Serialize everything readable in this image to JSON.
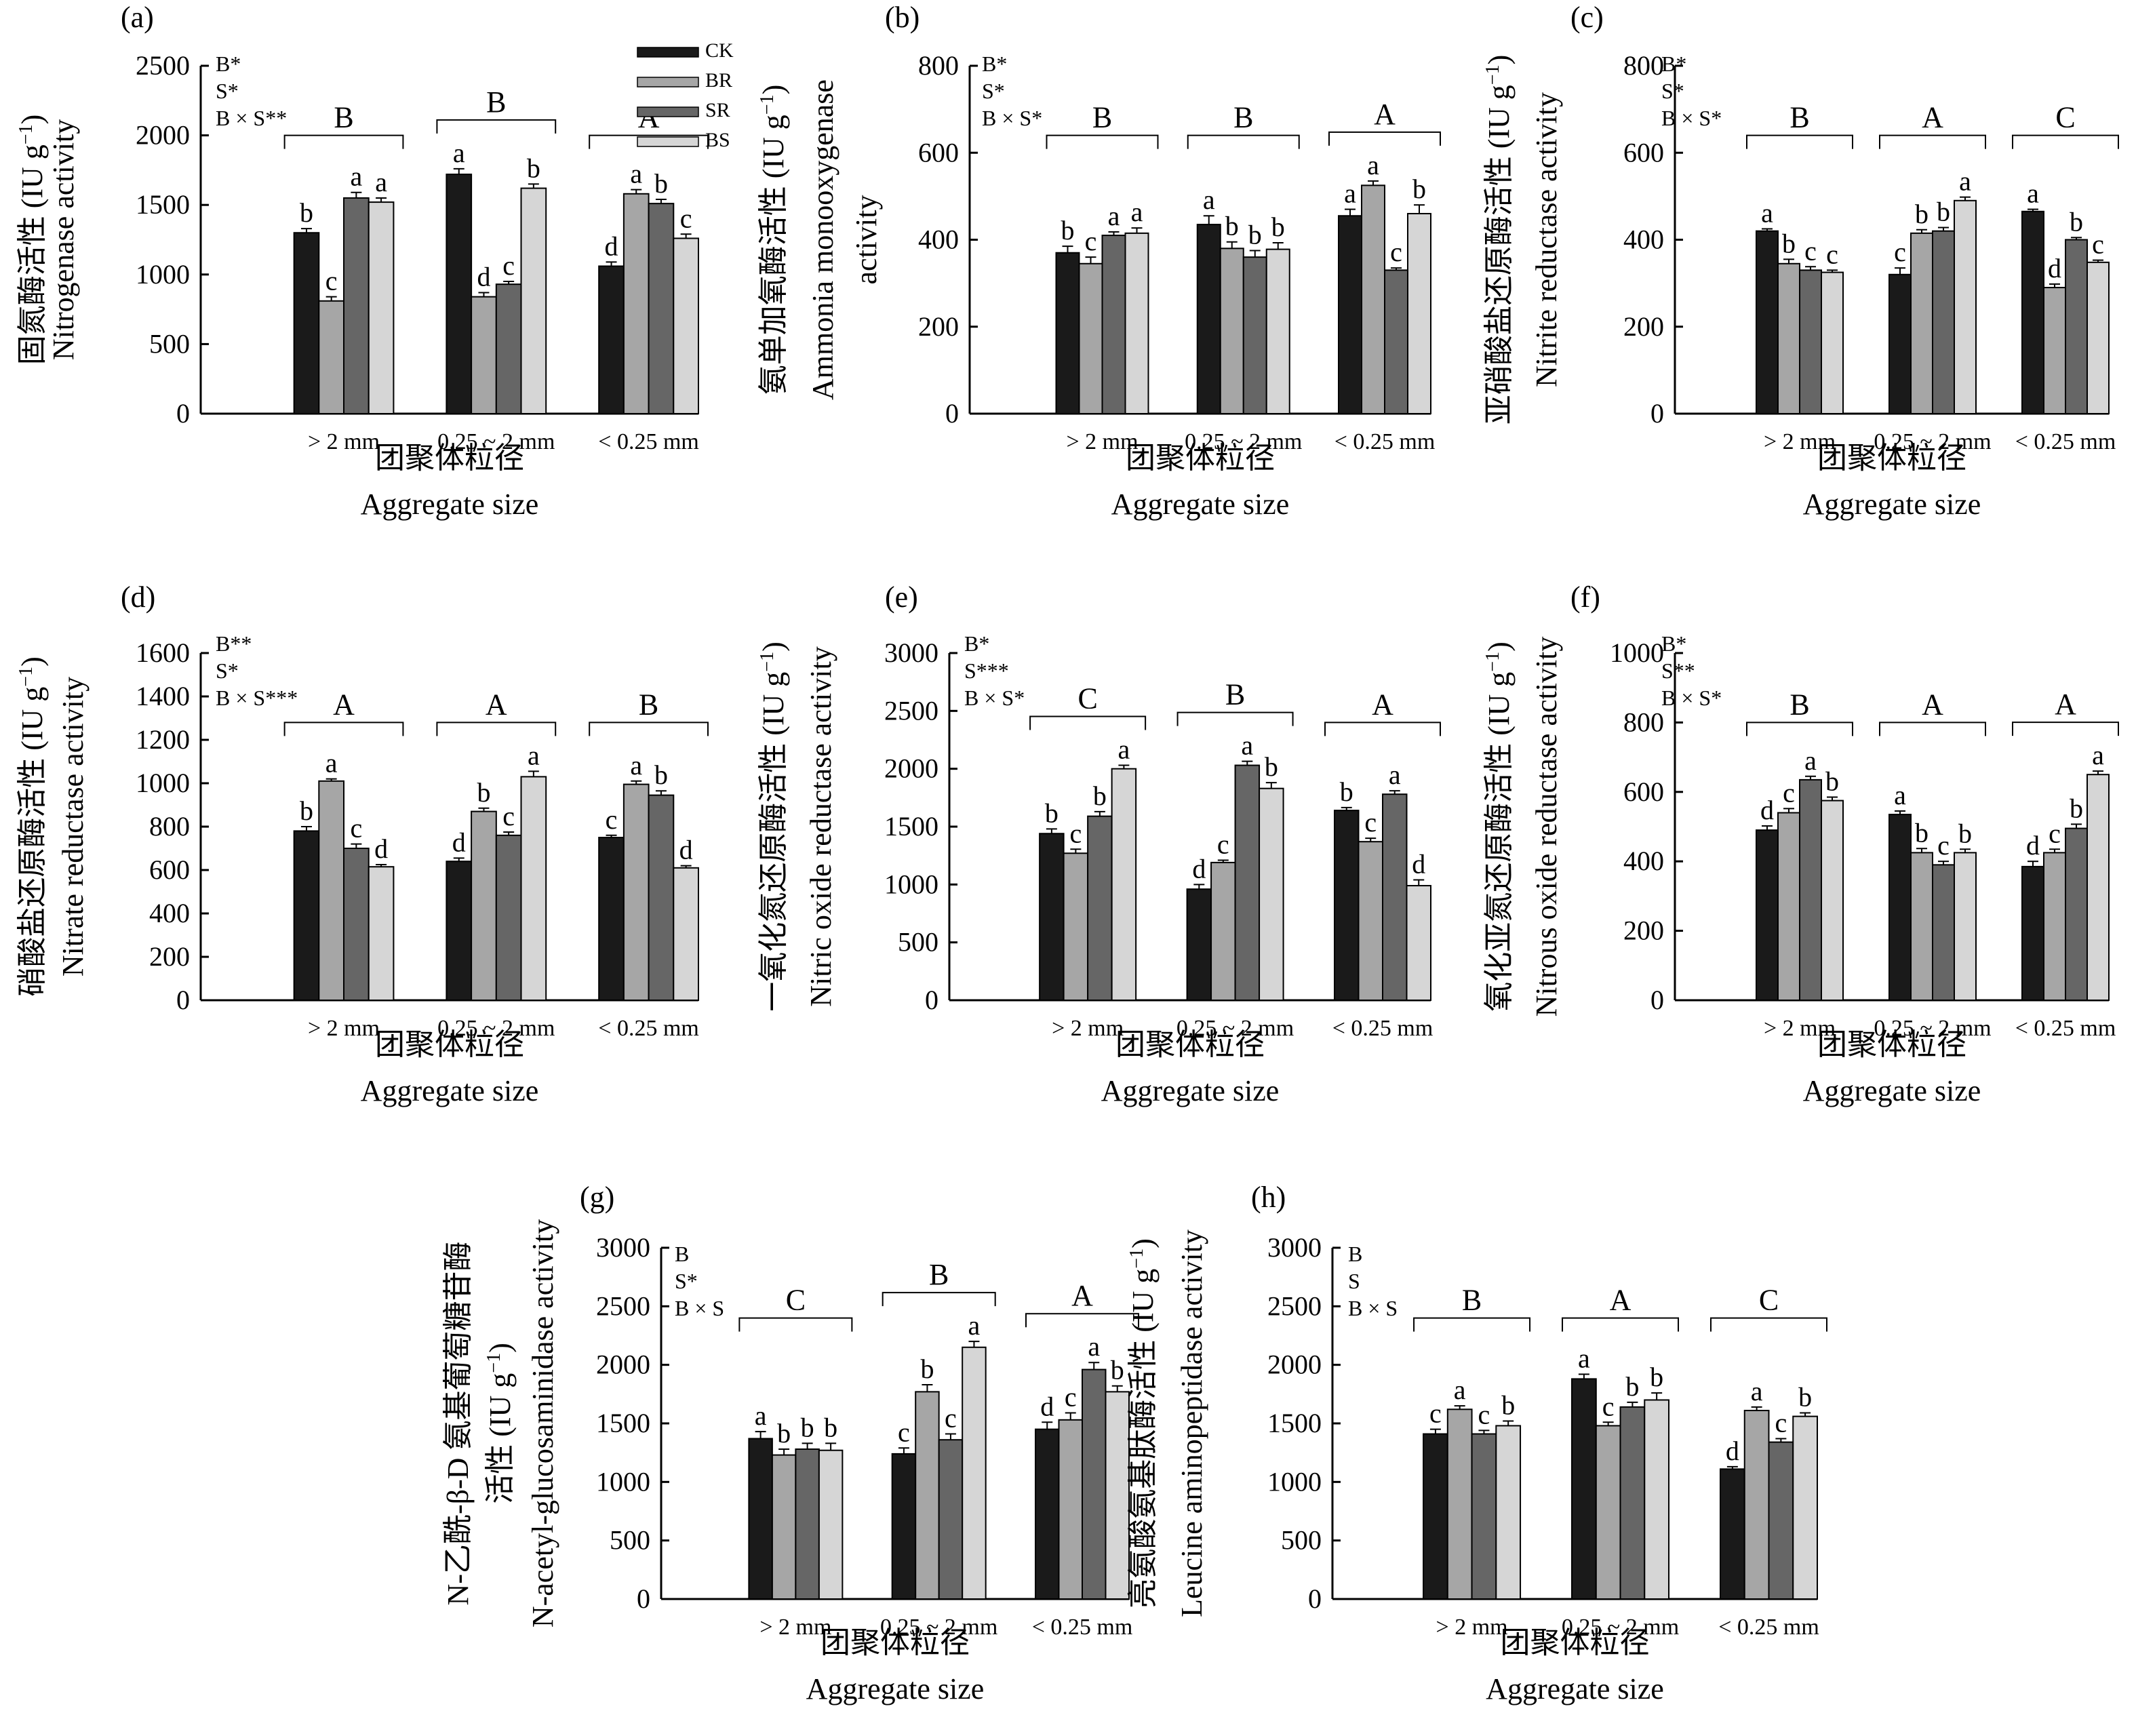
{
  "legend": {
    "series": [
      {
        "name": "CK",
        "color": "#1a1a1a"
      },
      {
        "name": "BR",
        "color": "#a6a6a6"
      },
      {
        "name": "SR",
        "color": "#666666"
      },
      {
        "name": "BS",
        "color": "#d6d6d6"
      }
    ]
  },
  "chart_data": [
    {
      "panel": "(a)",
      "type": "bar",
      "ylabel_cn": "固氮酶活性 (IU g⁻¹)",
      "ylabel_en": [
        "Nitrogenase activity"
      ],
      "xlabel_cn": "团聚体粒径",
      "xlabel_en": "Aggregate size",
      "categories": [
        "> 2 mm",
        "0.25 ~ 2 mm",
        "< 0.25 mm"
      ],
      "ylim": [
        0,
        2500
      ],
      "yticks": [
        0,
        500,
        1000,
        1500,
        2000,
        2500
      ],
      "stats": [
        "B*",
        "S*",
        "B × S**"
      ],
      "group_letters": [
        "B",
        "B",
        "A"
      ],
      "series": [
        {
          "name": "CK",
          "values": [
            1300,
            1720,
            1060
          ],
          "errors": [
            30,
            40,
            30
          ],
          "letters": [
            "b",
            "a",
            "d"
          ]
        },
        {
          "name": "BR",
          "values": [
            810,
            840,
            1580
          ],
          "errors": [
            30,
            30,
            30
          ],
          "letters": [
            "c",
            "d",
            "a"
          ]
        },
        {
          "name": "SR",
          "values": [
            1550,
            930,
            1510
          ],
          "errors": [
            40,
            20,
            30
          ],
          "letters": [
            "a",
            "c",
            "b"
          ]
        },
        {
          "name": "BS",
          "values": [
            1520,
            1620,
            1260
          ],
          "errors": [
            30,
            30,
            30
          ],
          "letters": [
            "a",
            "b",
            "c"
          ]
        }
      ]
    },
    {
      "panel": "(b)",
      "type": "bar",
      "ylabel_cn": "氨单加氧酶活性 (IU g⁻¹)",
      "ylabel_en": [
        "Ammonia monooxygenase",
        "activity"
      ],
      "xlabel_cn": "团聚体粒径",
      "xlabel_en": "Aggregate size",
      "categories": [
        "> 2 mm",
        "0.25 ~ 2 mm",
        "< 0.25 mm"
      ],
      "ylim": [
        0,
        800
      ],
      "yticks": [
        0,
        200,
        400,
        600,
        800
      ],
      "stats": [
        "B*",
        "S*",
        "B × S*"
      ],
      "group_letters": [
        "B",
        "B",
        "A"
      ],
      "series": [
        {
          "name": "CK",
          "values": [
            370,
            435,
            455
          ],
          "errors": [
            15,
            20,
            15
          ],
          "letters": [
            "b",
            "a",
            "a"
          ]
        },
        {
          "name": "BR",
          "values": [
            345,
            380,
            525
          ],
          "errors": [
            15,
            15,
            10
          ],
          "letters": [
            "c",
            "b",
            "a"
          ]
        },
        {
          "name": "SR",
          "values": [
            410,
            360,
            330
          ],
          "errors": [
            8,
            15,
            5
          ],
          "letters": [
            "a",
            "b",
            "c"
          ]
        },
        {
          "name": "BS",
          "values": [
            415,
            378,
            460
          ],
          "errors": [
            12,
            15,
            20
          ],
          "letters": [
            "a",
            "b",
            "b"
          ]
        }
      ]
    },
    {
      "panel": "(c)",
      "type": "bar",
      "ylabel_cn": "亚硝酸盐还原酶活性 (IU g⁻¹)",
      "ylabel_en": [
        "Nitrite reductase activity"
      ],
      "xlabel_cn": "团聚体粒径",
      "xlabel_en": "Aggregate size",
      "categories": [
        "> 2 mm",
        "0.25 ~ 2 mm",
        "< 0.25 mm"
      ],
      "ylim": [
        0,
        800
      ],
      "yticks": [
        0,
        200,
        400,
        600,
        800
      ],
      "stats": [
        "B*",
        "S*",
        "B × S*"
      ],
      "group_letters": [
        "B",
        "A",
        "C"
      ],
      "series": [
        {
          "name": "CK",
          "values": [
            420,
            320,
            465
          ],
          "errors": [
            5,
            15,
            5
          ],
          "letters": [
            "a",
            "c",
            "a"
          ]
        },
        {
          "name": "BR",
          "values": [
            345,
            415,
            290
          ],
          "errors": [
            10,
            8,
            8
          ],
          "letters": [
            "b",
            "b",
            "d"
          ]
        },
        {
          "name": "SR",
          "values": [
            330,
            420,
            400
          ],
          "errors": [
            8,
            8,
            5
          ],
          "letters": [
            "c",
            "b",
            "b"
          ]
        },
        {
          "name": "BS",
          "values": [
            325,
            490,
            348
          ],
          "errors": [
            5,
            8,
            5
          ],
          "letters": [
            "c",
            "a",
            "c"
          ]
        }
      ]
    },
    {
      "panel": "(d)",
      "type": "bar",
      "ylabel_cn": "硝酸盐还原酶活性 (IU g⁻¹)",
      "ylabel_en": [
        "Nitrate reductase activity"
      ],
      "xlabel_cn": "团聚体粒径",
      "xlabel_en": "Aggregate size",
      "categories": [
        "> 2 mm",
        "0.25 ~ 2 mm",
        "< 0.25 mm"
      ],
      "ylim": [
        0,
        1600
      ],
      "yticks": [
        0,
        200,
        400,
        600,
        800,
        1000,
        1200,
        1400,
        1600
      ],
      "stats": [
        "B**",
        "S*",
        "B × S***"
      ],
      "group_letters": [
        "A",
        "A",
        "B"
      ],
      "series": [
        {
          "name": "CK",
          "values": [
            780,
            640,
            750
          ],
          "errors": [
            20,
            15,
            10
          ],
          "letters": [
            "b",
            "d",
            "c"
          ]
        },
        {
          "name": "BR",
          "values": [
            1010,
            870,
            995
          ],
          "errors": [
            10,
            15,
            15
          ],
          "letters": [
            "a",
            "b",
            "a"
          ]
        },
        {
          "name": "SR",
          "values": [
            700,
            760,
            945
          ],
          "errors": [
            20,
            15,
            20
          ],
          "letters": [
            "c",
            "c",
            "b"
          ]
        },
        {
          "name": "BS",
          "values": [
            615,
            1030,
            610
          ],
          "errors": [
            10,
            25,
            10
          ],
          "letters": [
            "d",
            "a",
            "d"
          ]
        }
      ]
    },
    {
      "panel": "(e)",
      "type": "bar",
      "ylabel_cn": "一氧化氮还原酶活性 (IU g⁻¹)",
      "ylabel_en": [
        "Nitric oxide reductase activity"
      ],
      "xlabel_cn": "团聚体粒径",
      "xlabel_en": "Aggregate size",
      "categories": [
        "> 2 mm",
        "0.25 ~ 2 mm",
        "< 0.25 mm"
      ],
      "ylim": [
        0,
        3000
      ],
      "yticks": [
        0,
        500,
        1000,
        1500,
        2000,
        2500,
        3000
      ],
      "stats": [
        "B*",
        "S***",
        "B × S*"
      ],
      "group_letters": [
        "C",
        "B",
        "A"
      ],
      "series": [
        {
          "name": "CK",
          "values": [
            1440,
            960,
            1640
          ],
          "errors": [
            40,
            40,
            25
          ],
          "letters": [
            "b",
            "d",
            "b"
          ]
        },
        {
          "name": "BR",
          "values": [
            1270,
            1190,
            1370
          ],
          "errors": [
            35,
            20,
            30
          ],
          "letters": [
            "c",
            "c",
            "c"
          ]
        },
        {
          "name": "SR",
          "values": [
            1590,
            2030,
            1780
          ],
          "errors": [
            40,
            35,
            30
          ],
          "letters": [
            "b",
            "a",
            "a"
          ]
        },
        {
          "name": "BS",
          "values": [
            2000,
            1830,
            990
          ],
          "errors": [
            30,
            50,
            50
          ],
          "letters": [
            "a",
            "b",
            "d"
          ]
        }
      ]
    },
    {
      "panel": "(f)",
      "type": "bar",
      "ylabel_cn": "氧化亚氮还原酶活性 (IU g⁻¹)",
      "ylabel_en": [
        "Nitrous oxide reductase activity"
      ],
      "xlabel_cn": "团聚体粒径",
      "xlabel_en": "Aggregate size",
      "categories": [
        "> 2 mm",
        "0.25 ~ 2 mm",
        "< 0.25 mm"
      ],
      "ylim": [
        0,
        1000
      ],
      "yticks": [
        0,
        200,
        400,
        600,
        800,
        1000
      ],
      "stats": [
        "B*",
        "S**",
        "B × S*"
      ],
      "group_letters": [
        "B",
        "A",
        "A"
      ],
      "series": [
        {
          "name": "CK",
          "values": [
            490,
            535,
            385
          ],
          "errors": [
            12,
            10,
            15
          ],
          "letters": [
            "d",
            "a",
            "d"
          ]
        },
        {
          "name": "BR",
          "values": [
            540,
            425,
            425
          ],
          "errors": [
            12,
            12,
            10
          ],
          "letters": [
            "c",
            "b",
            "c"
          ]
        },
        {
          "name": "SR",
          "values": [
            635,
            390,
            495
          ],
          "errors": [
            10,
            10,
            12
          ],
          "letters": [
            "a",
            "c",
            "b"
          ]
        },
        {
          "name": "BS",
          "values": [
            575,
            425,
            650
          ],
          "errors": [
            10,
            10,
            10
          ],
          "letters": [
            "b",
            "b",
            "a"
          ]
        }
      ]
    },
    {
      "panel": "(g)",
      "type": "bar",
      "ylabel_cn": "N-乙酰-β-D 氨基葡萄糖苷酶 活性 (IU g⁻¹)",
      "ylabel_en": [
        "N-acetyl-glucosaminidase activity"
      ],
      "ylabel_cn_lines": [
        "N-乙酰-β-D 氨基葡萄糖苷酶",
        "活性 (IU g⁻¹)"
      ],
      "xlabel_cn": "团聚体粒径",
      "xlabel_en": "Aggregate size",
      "categories": [
        "> 2 mm",
        "0.25 ~ 2 mm",
        "< 0.25 mm"
      ],
      "ylim": [
        0,
        3000
      ],
      "yticks": [
        0,
        500,
        1000,
        1500,
        2000,
        2500,
        3000
      ],
      "stats": [
        "B",
        "S*",
        "B × S"
      ],
      "group_letters": [
        "C",
        "B",
        "A"
      ],
      "series": [
        {
          "name": "CK",
          "values": [
            1370,
            1240,
            1450
          ],
          "errors": [
            60,
            50,
            60
          ],
          "letters": [
            "a",
            "c",
            "d"
          ]
        },
        {
          "name": "BR",
          "values": [
            1230,
            1770,
            1530
          ],
          "errors": [
            50,
            60,
            60
          ],
          "letters": [
            "b",
            "b",
            "c"
          ]
        },
        {
          "name": "SR",
          "values": [
            1280,
            1360,
            1960
          ],
          "errors": [
            50,
            50,
            60
          ],
          "letters": [
            "b",
            "c",
            "a"
          ]
        },
        {
          "name": "BS",
          "values": [
            1270,
            2150,
            1770
          ],
          "errors": [
            60,
            50,
            50
          ],
          "letters": [
            "b",
            "a",
            "b"
          ]
        }
      ]
    },
    {
      "panel": "(h)",
      "type": "bar",
      "ylabel_cn": "亮氨酸氨基肽酶活性 (IU g⁻¹)",
      "ylabel_en": [
        "Leucine aminopeptidase activity"
      ],
      "xlabel_cn": "团聚体粒径",
      "xlabel_en": "Aggregate size",
      "categories": [
        "> 2 mm",
        "0.25 ~ 2 mm",
        "< 0.25 mm"
      ],
      "ylim": [
        0,
        3000
      ],
      "yticks": [
        0,
        500,
        1000,
        1500,
        2000,
        2500,
        3000
      ],
      "stats": [
        "B",
        "S",
        "B × S"
      ],
      "group_letters": [
        "B",
        "A",
        "C"
      ],
      "series": [
        {
          "name": "CK",
          "values": [
            1410,
            1880,
            1110
          ],
          "errors": [
            40,
            40,
            20
          ],
          "letters": [
            "c",
            "a",
            "d"
          ]
        },
        {
          "name": "BR",
          "values": [
            1620,
            1480,
            1610
          ],
          "errors": [
            30,
            30,
            30
          ],
          "letters": [
            "a",
            "c",
            "a"
          ]
        },
        {
          "name": "SR",
          "values": [
            1410,
            1640,
            1340
          ],
          "errors": [
            30,
            40,
            30
          ],
          "letters": [
            "c",
            "b",
            "c"
          ]
        },
        {
          "name": "BS",
          "values": [
            1480,
            1700,
            1560
          ],
          "errors": [
            40,
            60,
            30
          ],
          "letters": [
            "b",
            "b",
            "b"
          ]
        }
      ]
    }
  ]
}
